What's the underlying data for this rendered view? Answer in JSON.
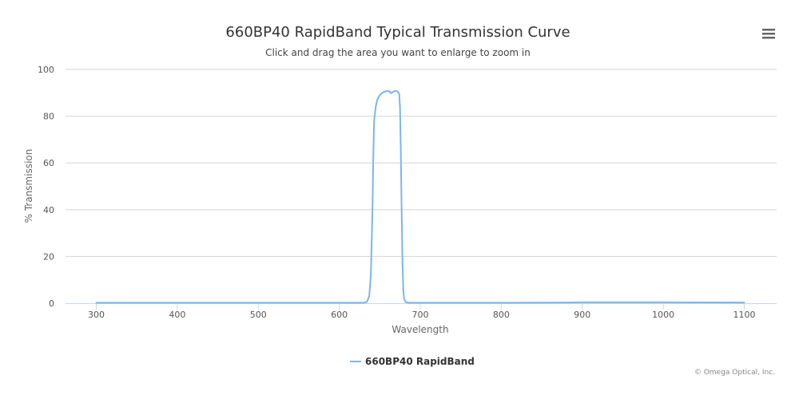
{
  "chart_data": {
    "type": "line",
    "title": "660BP40 RapidBand Typical Transmission Curve",
    "subtitle": "Click and drag the area you want to enlarge to zoom in",
    "xlabel": "Wavelength",
    "ylabel": "% Transmission",
    "xlim": [
      262,
      1140
    ],
    "ylim": [
      0,
      100
    ],
    "x_ticks": [
      300,
      400,
      500,
      600,
      700,
      800,
      900,
      1000,
      1100
    ],
    "y_ticks": [
      0,
      20,
      40,
      60,
      80,
      100
    ],
    "grid": "horizontal",
    "legend_position": "bottom-center",
    "credit": "© Omega Optical, Inc.",
    "series": [
      {
        "name": "660BP40 RapidBand",
        "color": "#7cb5ec",
        "points": [
          [
            300,
            0.2
          ],
          [
            400,
            0.2
          ],
          [
            500,
            0.2
          ],
          [
            600,
            0.2
          ],
          [
            630,
            0.2
          ],
          [
            634,
            0.5
          ],
          [
            637,
            3
          ],
          [
            639,
            12
          ],
          [
            641,
            40
          ],
          [
            642,
            62
          ],
          [
            643,
            78
          ],
          [
            645,
            84
          ],
          [
            647,
            87
          ],
          [
            650,
            89
          ],
          [
            653,
            90
          ],
          [
            656,
            90.5
          ],
          [
            659,
            90.8
          ],
          [
            662,
            90.6
          ],
          [
            664,
            89.8
          ],
          [
            666,
            90.4
          ],
          [
            669,
            90.8
          ],
          [
            672,
            90.6
          ],
          [
            674,
            89.5
          ],
          [
            675,
            84
          ],
          [
            676,
            65
          ],
          [
            677,
            40
          ],
          [
            678,
            18
          ],
          [
            679,
            6
          ],
          [
            680,
            2
          ],
          [
            682,
            0.5
          ],
          [
            686,
            0.2
          ],
          [
            700,
            0.2
          ],
          [
            800,
            0.2
          ],
          [
            880,
            0.3
          ],
          [
            900,
            0.4
          ],
          [
            1000,
            0.4
          ],
          [
            1100,
            0.3
          ]
        ]
      }
    ]
  },
  "ui": {
    "menu_icon": "hamburger-menu-icon"
  }
}
